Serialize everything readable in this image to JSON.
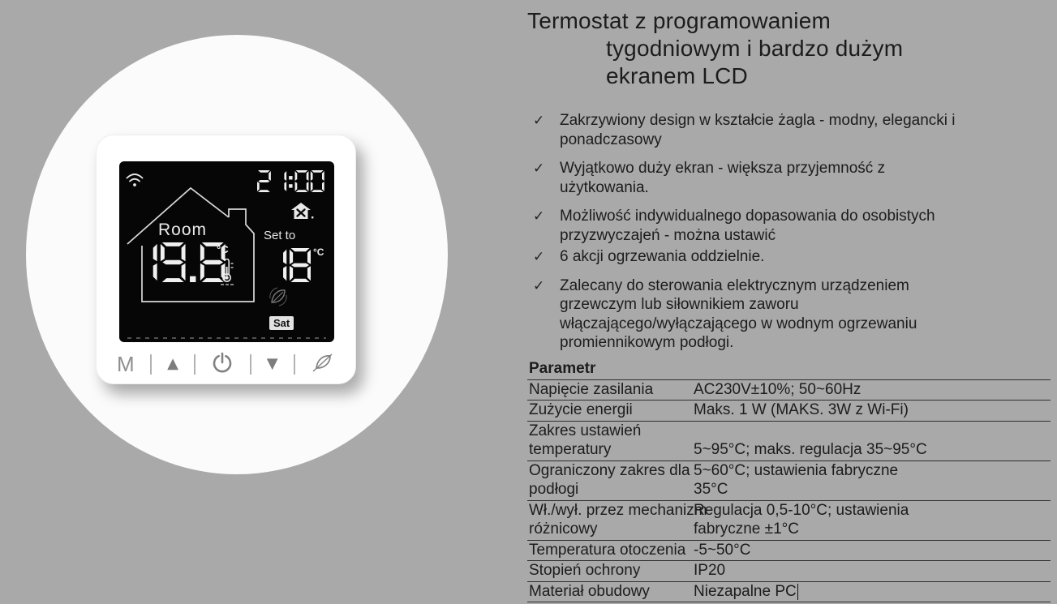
{
  "device": {
    "screen": {
      "time": "21:00",
      "room_label": "Room",
      "room_temp": "19.8",
      "room_temp_unit": "°C",
      "set_label": "Set to",
      "set_temp": "18",
      "set_temp_unit": "°C",
      "day": "Sat",
      "icons": {
        "wifi": "wifi-icon",
        "schedule_house": "house-tools-icon",
        "thermometer": "thermometer-icon",
        "eco": "leaf-icon"
      }
    },
    "buttons": {
      "mode": "M",
      "up": "▲",
      "power": "power-icon",
      "down": "▼",
      "eco": "leaf-icon"
    }
  },
  "content": {
    "title_lines": [
      "Termostat z programowaniem",
      "tygodniowym i bardzo dużym",
      "ekranem LCD"
    ],
    "bullet_marker": "✓",
    "bullets": [
      {
        "text": "Zakrzywiony design w kształcie żagla - modny, elegancki i\nponadczasowy"
      },
      {
        "text": "Wyjątkowo duży ekran - większa przyjemność z\nużytkowania."
      },
      {
        "text": "Możliwość indywidualnego dopasowania do osobistych\nprzyzwyczajeń - można ustawić"
      },
      {
        "text": "6 akcji ogrzewania oddzielnie.",
        "tight": true
      },
      {
        "text": "Zalecany do sterowania elektrycznym urządzeniem\ngrzewczym lub siłownikiem zaworu\nwłączającego/wyłączającego w wodnym ogrzewaniu\npromiennikowym podłogi."
      }
    ],
    "table": {
      "header": "Parametr",
      "rows": [
        {
          "label": "Napięcie zasilania",
          "value": "AC230V±10%; 50~60Hz"
        },
        {
          "label": "Zużycie energii",
          "value": "Maks. 1 W (MAKS. 3W z Wi-Fi)"
        },
        {
          "label": "Zakres ustawień\ntemperatury",
          "value": "5~95°C; maks. regulacja 35~95°C"
        },
        {
          "label": "Ograniczony zakres dla\npodłogi",
          "value": "5~60°C; ustawienia fabryczne\n35°C"
        },
        {
          "label": "Wł./wył. przez mechanizm\nróżnicowy",
          "value": "Regulacja 0,5-10°C; ustawienia\nfabryczne ±1°C"
        },
        {
          "label": "Temperatura otoczenia",
          "value": "-5~50°C"
        },
        {
          "label": "Stopień ochrony",
          "value": "IP20"
        },
        {
          "label": "Materiał obudowy",
          "value": "Niezapalne PC",
          "caret": true
        }
      ]
    }
  },
  "colors": {
    "page_bg": "#a9a9a9",
    "circle": "#fbfbfb",
    "device": "#ffffff",
    "lcd_bg": "#060606",
    "segment": "#f0f0f0",
    "button_gray": "#8c8c8c",
    "text": "#1c1c1c",
    "table_line": "#2e2e2e"
  }
}
